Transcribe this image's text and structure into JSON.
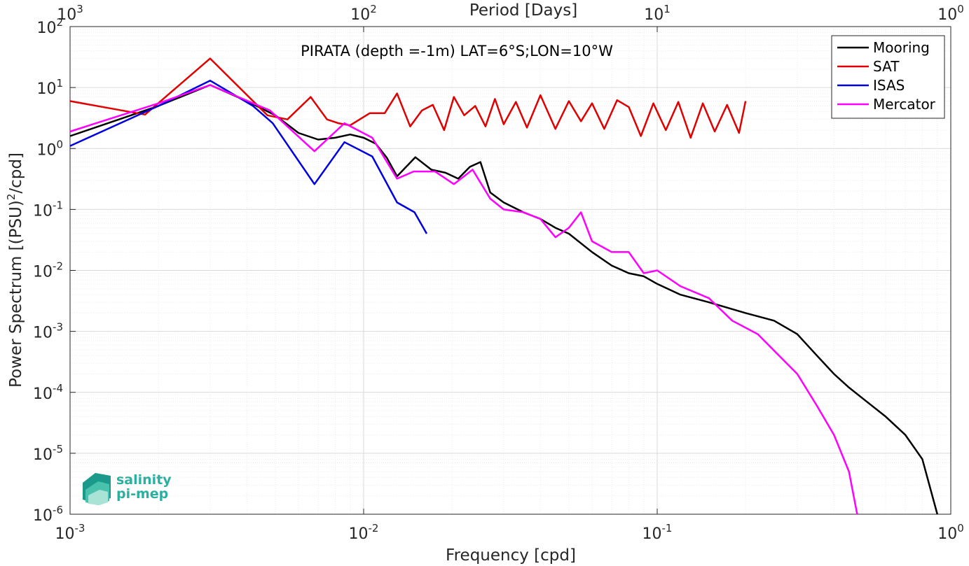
{
  "chart_data": {
    "type": "line",
    "title": "PIRATA (depth =-1m) LAT=6°S;LON=10°W",
    "xlabel": "Frequency [cpd]",
    "ylabel": "Power Spectrum [(PSU)²/cpd]",
    "ylabel_main": "Power Spectrum [(PSU)",
    "ylabel_sup": "2",
    "ylabel_tail": "/cpd]",
    "top_label": "Period [Days]",
    "xscale": "log",
    "yscale": "log",
    "xlim": [
      0.001,
      1
    ],
    "ylim": [
      1e-06,
      100
    ],
    "grid": true,
    "legend_position": "top-right",
    "x_ticks": [
      {
        "value": 0.001,
        "base": "10",
        "exp": "-3"
      },
      {
        "value": 0.01,
        "base": "10",
        "exp": "-2"
      },
      {
        "value": 0.1,
        "base": "10",
        "exp": "-1"
      },
      {
        "value": 1,
        "base": "10",
        "exp": "0"
      }
    ],
    "y_ticks": [
      {
        "value": 100,
        "base": "10",
        "exp": "2"
      },
      {
        "value": 10,
        "base": "10",
        "exp": "1"
      },
      {
        "value": 1,
        "base": "10",
        "exp": "0"
      },
      {
        "value": 0.1,
        "base": "10",
        "exp": "-1"
      },
      {
        "value": 0.01,
        "base": "10",
        "exp": "-2"
      },
      {
        "value": 0.001,
        "base": "10",
        "exp": "-3"
      },
      {
        "value": 0.0001,
        "base": "10",
        "exp": "-4"
      },
      {
        "value": 1e-05,
        "base": "10",
        "exp": "-5"
      },
      {
        "value": 1e-06,
        "base": "10",
        "exp": "-6"
      }
    ],
    "top_ticks": [
      {
        "period": 1000,
        "base": "10",
        "exp": "3"
      },
      {
        "period": 100,
        "base": "10",
        "exp": "2"
      },
      {
        "period": 10,
        "base": "10",
        "exp": "1"
      },
      {
        "period": 1,
        "base": "10",
        "exp": "0"
      }
    ],
    "series": [
      {
        "name": "Mooring",
        "color": "#000000",
        "x": [
          0.001,
          0.002,
          0.003,
          0.004,
          0.005,
          0.006,
          0.007,
          0.008,
          0.009,
          0.01,
          0.011,
          0.012,
          0.013,
          0.015,
          0.017,
          0.019,
          0.021,
          0.023,
          0.025,
          0.027,
          0.03,
          0.035,
          0.04,
          0.045,
          0.05,
          0.06,
          0.07,
          0.08,
          0.09,
          0.1,
          0.12,
          0.15,
          0.2,
          0.25,
          0.3,
          0.35,
          0.4,
          0.45,
          0.5,
          0.6,
          0.7,
          0.8,
          0.9
        ],
        "y": [
          1.6,
          5.0,
          11.0,
          6.0,
          3.5,
          1.8,
          1.4,
          1.5,
          1.7,
          1.5,
          1.2,
          0.7,
          0.35,
          0.72,
          0.45,
          0.4,
          0.32,
          0.5,
          0.6,
          0.19,
          0.13,
          0.09,
          0.07,
          0.05,
          0.04,
          0.02,
          0.012,
          0.009,
          0.008,
          0.006,
          0.004,
          0.003,
          0.002,
          0.0015,
          0.0009,
          0.0004,
          0.0002,
          0.00012,
          8e-05,
          4e-05,
          2e-05,
          8e-06,
          1e-06
        ]
      },
      {
        "name": "SAT",
        "color": "#e00000",
        "x": [
          0.001,
          0.0018,
          0.003,
          0.0047,
          0.0055,
          0.0066,
          0.0075,
          0.0082,
          0.009,
          0.0105,
          0.0118,
          0.013,
          0.0144,
          0.0158,
          0.0172,
          0.0188,
          0.0203,
          0.022,
          0.024,
          0.026,
          0.028,
          0.03,
          0.033,
          0.036,
          0.04,
          0.045,
          0.05,
          0.055,
          0.06,
          0.066,
          0.073,
          0.08,
          0.088,
          0.097,
          0.107,
          0.118,
          0.13,
          0.143,
          0.157,
          0.173,
          0.19,
          0.2
        ],
        "y": [
          6.0,
          3.6,
          30.0,
          3.5,
          3.0,
          7.0,
          3.0,
          2.6,
          2.4,
          3.8,
          3.8,
          8.0,
          2.3,
          4.2,
          5.2,
          2.0,
          7.0,
          3.5,
          5.0,
          2.3,
          6.5,
          2.5,
          5.8,
          2.2,
          7.5,
          2.1,
          6.0,
          2.8,
          5.5,
          2.1,
          6.2,
          4.8,
          1.6,
          5.5,
          2.0,
          5.8,
          1.5,
          5.5,
          1.9,
          5.2,
          1.8,
          6.0
        ]
      },
      {
        "name": "ISAS",
        "color": "#0000e0",
        "x": [
          0.001,
          0.002,
          0.003,
          0.0042,
          0.0049,
          0.0068,
          0.0086,
          0.0107,
          0.013,
          0.0149,
          0.0164
        ],
        "y": [
          1.1,
          5.0,
          13.0,
          5.0,
          2.6,
          0.26,
          1.27,
          0.74,
          0.13,
          0.09,
          0.04
        ]
      },
      {
        "name": "Mercator",
        "color": "#ff00ff",
        "x": [
          0.001,
          0.002,
          0.003,
          0.0048,
          0.0068,
          0.0086,
          0.0107,
          0.013,
          0.0148,
          0.0175,
          0.0203,
          0.0235,
          0.027,
          0.03,
          0.035,
          0.04,
          0.045,
          0.05,
          0.055,
          0.06,
          0.07,
          0.08,
          0.09,
          0.1,
          0.12,
          0.15,
          0.18,
          0.22,
          0.26,
          0.3,
          0.35,
          0.4,
          0.45,
          0.48
        ],
        "y": [
          1.9,
          5.5,
          11.0,
          4.2,
          0.9,
          2.6,
          1.5,
          0.32,
          0.42,
          0.42,
          0.26,
          0.45,
          0.15,
          0.1,
          0.09,
          0.07,
          0.035,
          0.05,
          0.09,
          0.03,
          0.02,
          0.02,
          0.009,
          0.01,
          0.0055,
          0.0035,
          0.0015,
          0.0009,
          0.0004,
          0.0002,
          6e-05,
          2e-05,
          5e-06,
          1e-06
        ]
      }
    ]
  },
  "logo": {
    "line1": "salinity",
    "line2": "pi-mep"
  }
}
